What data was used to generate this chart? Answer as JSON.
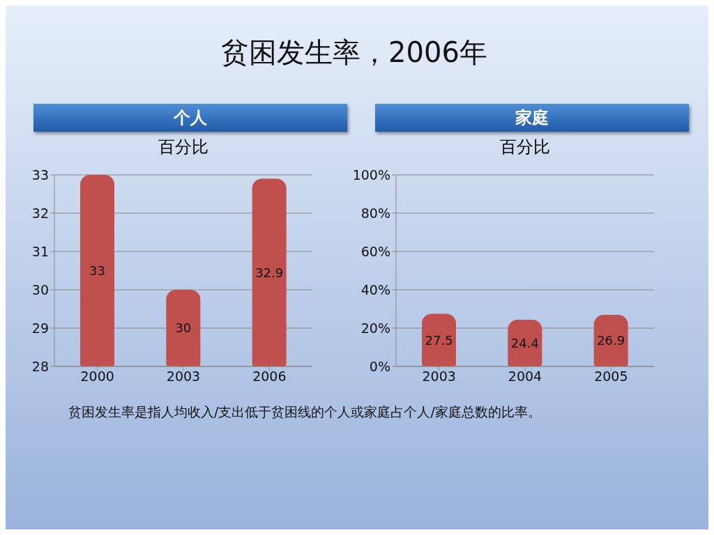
{
  "chart_data": [
    {
      "type": "other",
      "title": "贫困发生率，2006年"
    },
    {
      "type": "bar",
      "title": "个人",
      "subtitle": "百分比",
      "categories": [
        "2000",
        "2003",
        "2006"
      ],
      "values": [
        33,
        30,
        32.9
      ],
      "color": "#c0504d",
      "ylim": [
        28,
        33
      ],
      "yticks": [
        28,
        29,
        30,
        31,
        32,
        33
      ],
      "grid": "y",
      "data_labels": true
    },
    {
      "type": "bar",
      "title": "家庭",
      "subtitle": "百分比",
      "categories": [
        "2003",
        "2004",
        "2005"
      ],
      "values": [
        27.5,
        24.4,
        26.9
      ],
      "data_labels": true,
      "color": "#c0504d",
      "ylim": [
        0,
        100
      ],
      "yticks": [
        {
          "value": 0,
          "label": "0%"
        },
        {
          "value": 20,
          "label": "20%"
        },
        {
          "value": 40,
          "label": "40%"
        },
        {
          "value": 60,
          "label": "60%"
        },
        {
          "value": 80,
          "label": "80%"
        },
        {
          "value": 100,
          "label": "100%"
        }
      ],
      "grid": "y"
    },
    {
      "type": "other",
      "annotations": [
        "贫困发生率是指人均收入/支出低于贫困线的个人或家庭占个人/家庭总数的比率。"
      ]
    }
  ]
}
